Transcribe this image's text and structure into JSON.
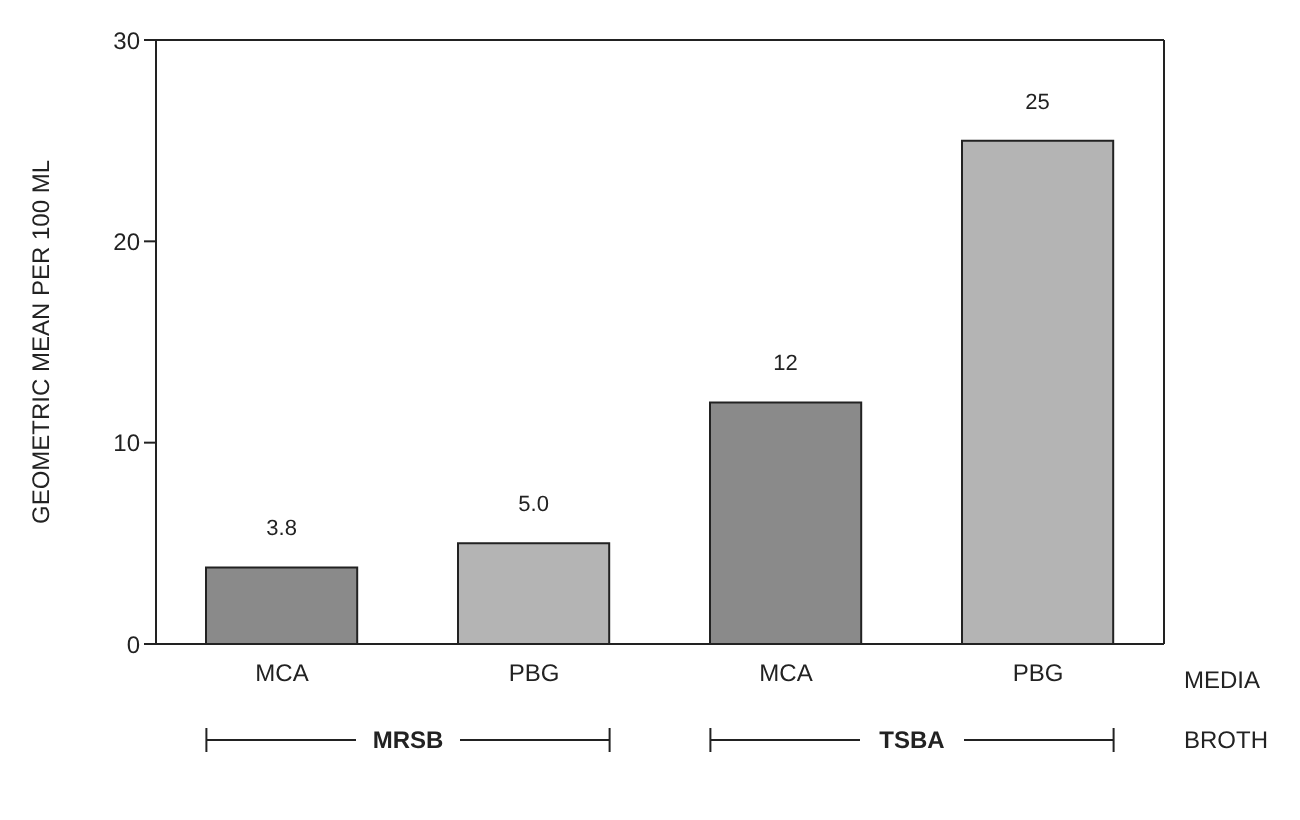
{
  "chart_data": {
    "type": "bar",
    "ylabel": "GEOMETRIC MEAN PER 100 ML",
    "xlabel": "MEDIA",
    "categories": [
      "MCA",
      "PBG",
      "MCA",
      "PBG"
    ],
    "values": [
      3.8,
      5.0,
      12,
      25
    ],
    "value_labels": [
      "3.8",
      "5.0",
      "12",
      "25"
    ],
    "colors": [
      "#8a8a8a",
      "#b4b4b4",
      "#8a8a8a",
      "#b4b4b4"
    ],
    "ylim": [
      0,
      30
    ],
    "yticks": [
      0,
      10,
      20,
      30
    ],
    "annotations": [
      "BROTH",
      "MRSB",
      "TSBA"
    ]
  }
}
